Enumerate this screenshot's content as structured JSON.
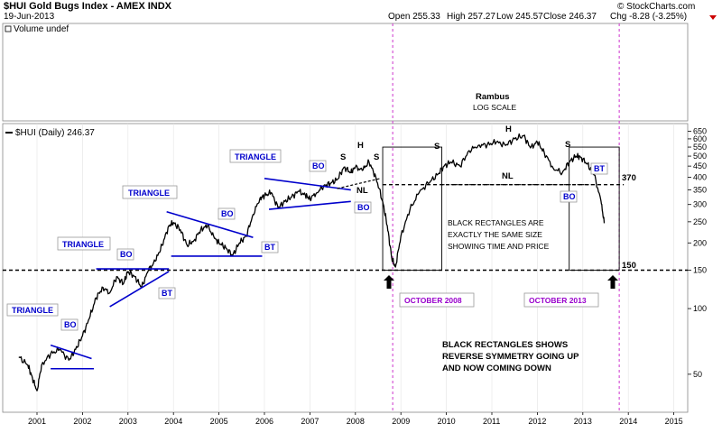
{
  "header": {
    "symbol_title": "$HUI Gold Bugs Index - AMEX INDX",
    "date": "19-Jun-2013",
    "open": "Open 255.33",
    "high": "High 257.27",
    "low": "Low 245.57",
    "close": "Close 246.37",
    "change": "Chg -8.28 (-3.25%)",
    "watermark": "© StockCharts.com",
    "volume_label": "Volume undef",
    "series_label": "$HUI (Daily) 246.37"
  },
  "chart_data": {
    "type": "line",
    "title": "$HUI Gold Bugs Index - AMEX INDX",
    "scale": "log",
    "xlabel": "",
    "ylabel": "",
    "ylim": [
      40,
      650
    ],
    "x_ticks": [
      "2001",
      "2002",
      "2003",
      "2004",
      "2005",
      "2006",
      "2007",
      "2008",
      "2009",
      "2010",
      "2011",
      "2012",
      "2013",
      "2014",
      "2015"
    ],
    "y_ticks": [
      650,
      600,
      550,
      500,
      450,
      400,
      350,
      300,
      250,
      200,
      150,
      100,
      50
    ],
    "series": [
      {
        "name": "$HUI (Daily)",
        "x": [
          2000.6,
          2000.8,
          2000.9,
          2001.0,
          2001.1,
          2001.3,
          2001.5,
          2001.7,
          2001.85,
          2002.0,
          2002.15,
          2002.3,
          2002.45,
          2002.6,
          2002.75,
          2002.9,
          2003.0,
          2003.15,
          2003.3,
          2003.45,
          2003.6,
          2003.75,
          2003.9,
          2004.0,
          2004.15,
          2004.3,
          2004.45,
          2004.6,
          2004.75,
          2004.9,
          2005.0,
          2005.15,
          2005.3,
          2005.45,
          2005.6,
          2005.75,
          2005.9,
          2006.0,
          2006.15,
          2006.3,
          2006.45,
          2006.6,
          2006.75,
          2006.9,
          2007.0,
          2007.15,
          2007.3,
          2007.45,
          2007.6,
          2007.75,
          2007.9,
          2008.0,
          2008.15,
          2008.3,
          2008.45,
          2008.6,
          2008.7,
          2008.8,
          2008.88,
          2009.0,
          2009.2,
          2009.4,
          2009.6,
          2009.8,
          2009.95,
          2010.1,
          2010.3,
          2010.5,
          2010.7,
          2010.9,
          2011.1,
          2011.3,
          2011.5,
          2011.7,
          2011.85,
          2012.0,
          2012.15,
          2012.35,
          2012.55,
          2012.7,
          2012.85,
          2012.95,
          2013.1,
          2013.25,
          2013.4,
          2013.47
        ],
        "values": [
          60,
          55,
          48,
          42,
          55,
          62,
          65,
          58,
          65,
          75,
          90,
          112,
          125,
          118,
          140,
          130,
          148,
          140,
          125,
          150,
          165,
          195,
          240,
          248,
          230,
          195,
          205,
          230,
          240,
          210,
          200,
          190,
          175,
          200,
          215,
          270,
          320,
          330,
          340,
          290,
          310,
          325,
          345,
          330,
          320,
          340,
          365,
          375,
          390,
          445,
          420,
          445,
          430,
          470,
          400,
          310,
          240,
          170,
          155,
          215,
          285,
          340,
          375,
          410,
          450,
          470,
          450,
          530,
          560,
          565,
          580,
          560,
          600,
          620,
          545,
          580,
          520,
          440,
          420,
          470,
          500,
          495,
          460,
          410,
          310,
          246.37
        ]
      }
    ],
    "reference_lines": [
      {
        "name": "level-150",
        "value": 150,
        "label": "150"
      },
      {
        "name": "level-370",
        "value": 370,
        "label": "370"
      }
    ],
    "event_lines": [
      {
        "name": "october-2008",
        "x": 2008.82
      },
      {
        "name": "october-2013",
        "x": 2013.8
      }
    ]
  },
  "annotations": {
    "triangle": "TRIANGLE",
    "bo": "BO",
    "bt": "BT",
    "head": "H",
    "shoulder": "S",
    "neckline": "NL",
    "level_370": "370",
    "level_150": "150",
    "author": "Rambus",
    "log_scale": "LOG SCALE",
    "october_2008": "OCTOBER 2008",
    "october_2013": "OCTOBER 2013",
    "rect_note_1": "BLACK RECTANGLES  ARE",
    "rect_note_2": "EXACTLY THE SAME SIZE",
    "rect_note_3": "SHOWING  TIME AND PRICE",
    "symmetry_1": "BLACK RECTANGLES SHOWS",
    "symmetry_2": "REVERSE SYMMETRY GOING UP",
    "symmetry_3": "AND NOW COMING DOWN"
  },
  "colors": {
    "price_line": "#000000",
    "pattern_line": "#0000cc",
    "event_line": "#cc33cc",
    "dashed_line": "#000000",
    "down_arrow": "#cc0000"
  }
}
